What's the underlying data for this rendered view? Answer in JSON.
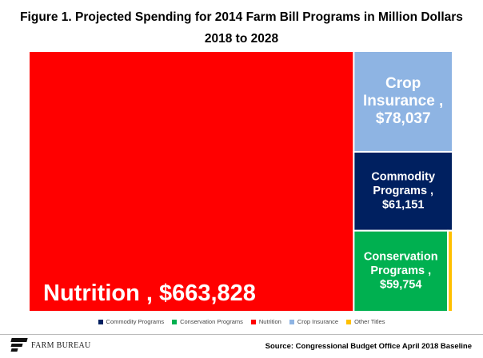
{
  "chart_data": {
    "type": "treemap",
    "title_line1": "Figure 1. Projected Spending for 2014 Farm Bill Programs in Million Dollars",
    "title_line2": "2018 to 2028",
    "series": [
      {
        "name": "Commodity Programs",
        "value": 61151,
        "label_lines": [
          "Commodity",
          "Programs ,",
          "$61,151"
        ],
        "color": "#002060"
      },
      {
        "name": "Conservation Programs",
        "value": 59754,
        "label_lines": [
          "Conservation",
          "Programs ,",
          "$59,754"
        ],
        "color": "#00b050"
      },
      {
        "name": "Nutrition",
        "value": 663828,
        "label_lines": [
          "Nutrition ,  $663,828"
        ],
        "color": "#ff0000"
      },
      {
        "name": "Crop Insurance",
        "value": 78037,
        "label_lines": [
          "Crop",
          "Insurance ,",
          "$78,037"
        ],
        "color": "#8eb4e3"
      },
      {
        "name": "Other Titles",
        "value": 3000,
        "label_lines": [],
        "color": "#ffc000"
      }
    ],
    "legend_position": "bottom"
  },
  "footer": {
    "logo_text": "FARM BUREAU",
    "logo_mark": "farm-bureau-logo-icon",
    "source": "Source: Congressional Budget Office April 2018 Baseline"
  }
}
